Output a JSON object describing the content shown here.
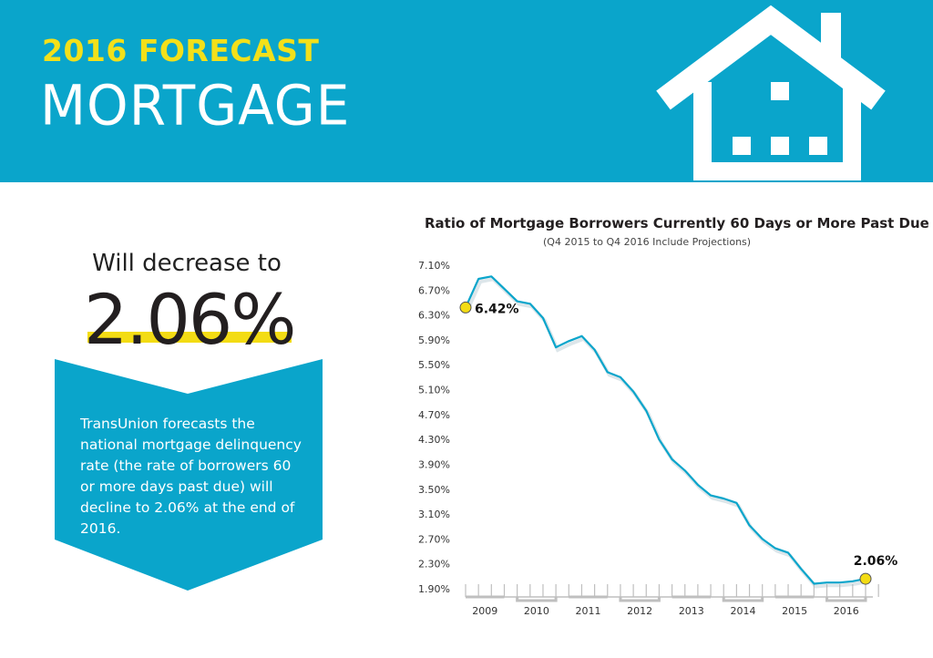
{
  "header": {
    "kicker": "2016 FORECAST",
    "headline": "MORTGAGE",
    "icon": "house-icon",
    "background": "#0aa5cb",
    "accent": "#f3e01a"
  },
  "callout": {
    "lead": "Will decrease to",
    "value": "2.06%",
    "body": "TransUnion forecasts the national mortgage delinquency rate (the rate of borrowers 60 or more days past due) will decline to 2.06% at the end of 2016."
  },
  "chart_data": {
    "type": "line",
    "title": "Ratio of Mortgage Borrowers Currently 60 Days or More Past Due",
    "subtitle": "(Q4 2015 to Q4 2016 Include Projections)",
    "y_ticks": [
      "7.10%",
      "6.70%",
      "6.30%",
      "5.90%",
      "5.50%",
      "5.10%",
      "4.70%",
      "4.30%",
      "3.90%",
      "3.50%",
      "3.10%",
      "2.70%",
      "2.30%",
      "1.90%"
    ],
    "ylim": [
      1.9,
      7.1
    ],
    "x_labels": [
      "2009",
      "2010",
      "2011",
      "2012",
      "2013",
      "2014",
      "2015",
      "2016"
    ],
    "x_domain": [
      2009,
      2016.75
    ],
    "series": [
      {
        "color": "#0aa5cb",
        "x": [
          2009.0,
          2009.25,
          2009.5,
          2009.75,
          2010.0,
          2010.25,
          2010.5,
          2010.75,
          2011.0,
          2011.25,
          2011.5,
          2011.75,
          2012.0,
          2012.25,
          2012.5,
          2012.75,
          2013.0,
          2013.25,
          2013.5,
          2013.75,
          2014.0,
          2014.25,
          2014.5,
          2014.75,
          2015.0,
          2015.25,
          2015.5,
          2015.75,
          2016.0,
          2016.25,
          2016.5,
          2016.75
        ],
        "y": [
          6.42,
          6.88,
          6.92,
          6.72,
          6.52,
          6.48,
          6.25,
          5.78,
          5.88,
          5.96,
          5.74,
          5.38,
          5.3,
          5.07,
          4.76,
          4.3,
          3.98,
          3.8,
          3.57,
          3.4,
          3.35,
          3.28,
          2.92,
          2.7,
          2.55,
          2.48,
          2.22,
          1.98,
          2.0,
          2.0,
          2.02,
          2.06
        ]
      }
    ],
    "annotations": [
      {
        "x": 2009.0,
        "y": 6.42,
        "label": "6.42%"
      },
      {
        "x": 2016.75,
        "y": 2.06,
        "label": "2.06%"
      }
    ],
    "marker_color": "#f3dc14",
    "grid": false
  }
}
